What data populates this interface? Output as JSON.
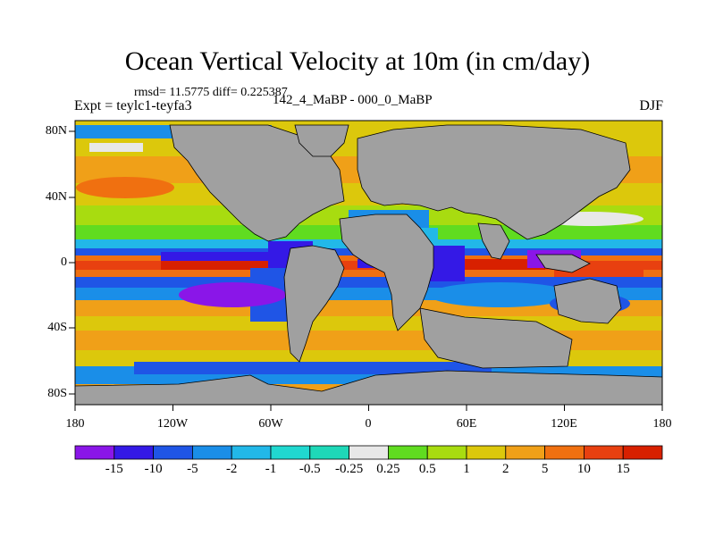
{
  "title": "Ocean Vertical Velocity at 10m (in cm/day)",
  "rmsd_line": "rmsd= 11.5775 diff= 0.225387",
  "experiment": "Expt = teylc1-teyfa3",
  "case_difference": "142_4_MaBP - 000_0_MaBP",
  "season": "DJF",
  "map": {
    "lon_ticks": [
      "180",
      "120W",
      "60W",
      "0",
      "60E",
      "120E",
      "180"
    ],
    "lat_ticks": [
      "80N",
      "40N",
      "0",
      "40S",
      "80S"
    ],
    "land_color": "#a0a0a0"
  },
  "colorbar": {
    "labels": [
      "-15",
      "-10",
      "-5",
      "-2",
      "-1",
      "-0.5",
      "-0.25",
      "0.25",
      "0.5",
      "1",
      "2",
      "5",
      "10",
      "15"
    ],
    "colors": [
      "#8a16e8",
      "#3419e6",
      "#1f55e6",
      "#1a8ee8",
      "#22b8e8",
      "#20d8d0",
      "#1ed8b8",
      "#e8e8e8",
      "#60dc20",
      "#a8dc10",
      "#dcc80c",
      "#f0a018",
      "#f07010",
      "#e84010",
      "#d82000"
    ]
  }
}
